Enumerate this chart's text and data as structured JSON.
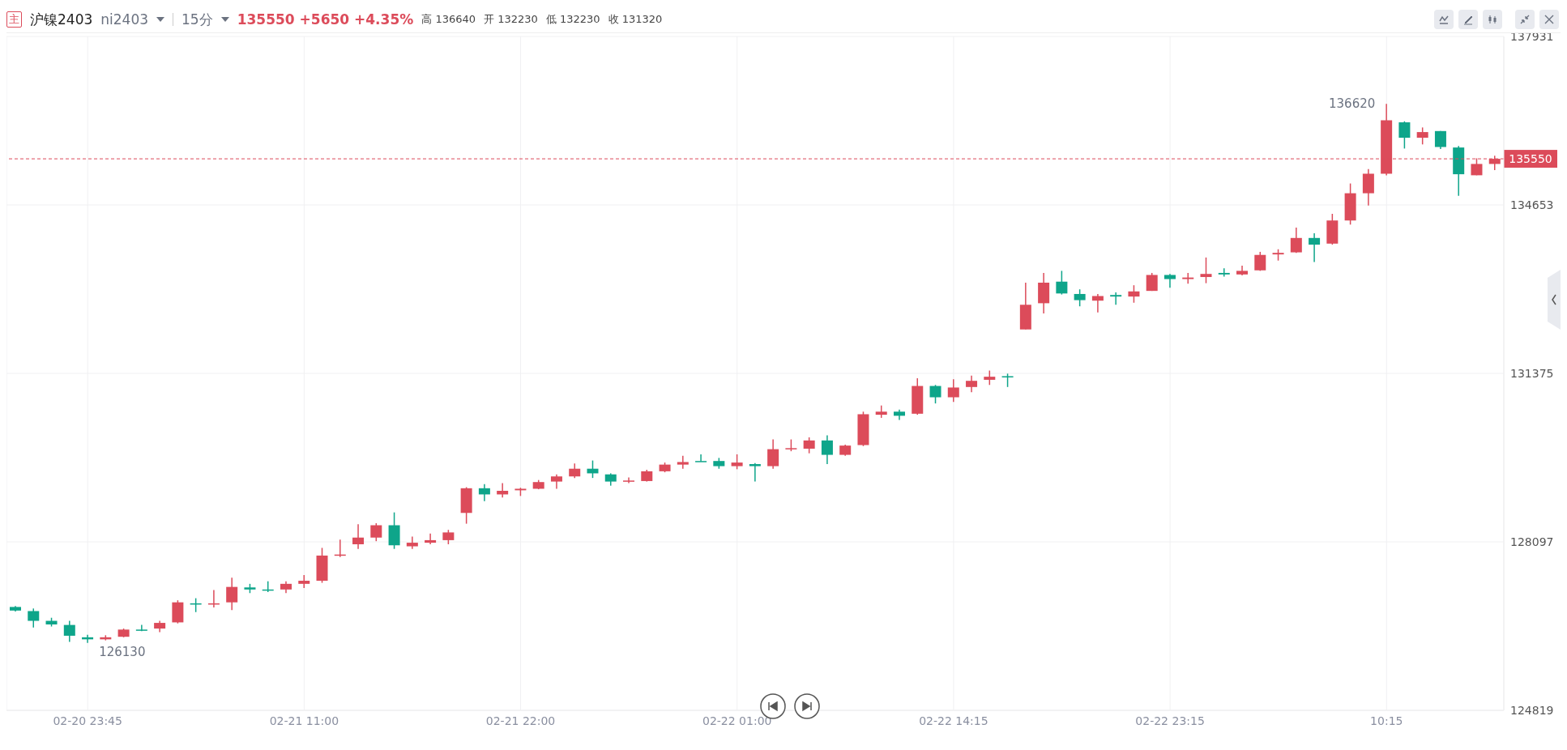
{
  "chart_data": {
    "type": "candlestick",
    "title": "沪镍2403",
    "subtitle": "ni2403",
    "annotations": [
      "主",
      "15分",
      "135550 +5650 +4.35%",
      "高 136640",
      "开 132230",
      "低 132230",
      "收 131320",
      "136620",
      "126130"
    ],
    "categories": [
      null,
      null,
      null,
      null,
      "02-20 23:45",
      null,
      null,
      null,
      null,
      null,
      null,
      null,
      null,
      null,
      null,
      null,
      "02-21 11:00",
      null,
      null,
      null,
      null,
      null,
      null,
      null,
      null,
      null,
      null,
      null,
      "02-21 22:00",
      null,
      null,
      null,
      null,
      null,
      null,
      null,
      null,
      null,
      null,
      null,
      "02-22 01:00",
      null,
      null,
      null,
      null,
      null,
      null,
      null,
      null,
      null,
      null,
      null,
      "02-22 14:15",
      null,
      null,
      null,
      null,
      null,
      null,
      null,
      null,
      null,
      null,
      null,
      "02-22 23:15",
      null,
      null,
      null,
      null,
      null,
      null,
      null,
      null,
      null,
      null,
      null,
      "10:15",
      null,
      null,
      null,
      null,
      null,
      null
    ],
    "ohlc": [
      [
        126830,
        126850,
        126740,
        126760
      ],
      [
        126750,
        126800,
        126430,
        126560
      ],
      [
        126560,
        126620,
        126450,
        126490
      ],
      [
        126480,
        126560,
        126150,
        126270
      ],
      [
        126240,
        126290,
        126130,
        126200
      ],
      [
        126200,
        126280,
        126180,
        126240
      ],
      [
        126250,
        126410,
        126240,
        126390
      ],
      [
        126390,
        126480,
        126360,
        126380
      ],
      [
        126410,
        126560,
        126340,
        126520
      ],
      [
        126530,
        126960,
        126510,
        126920
      ],
      [
        126900,
        127000,
        126730,
        126890
      ],
      [
        126890,
        127160,
        126820,
        126900
      ],
      [
        126920,
        127400,
        126770,
        127220
      ],
      [
        127210,
        127280,
        127100,
        127170
      ],
      [
        127170,
        127330,
        127120,
        127150
      ],
      [
        127170,
        127330,
        127100,
        127280
      ],
      [
        127280,
        127450,
        127200,
        127340
      ],
      [
        127340,
        127980,
        127300,
        127830
      ],
      [
        127830,
        128140,
        127800,
        127850
      ],
      [
        128050,
        128440,
        127960,
        128180
      ],
      [
        128180,
        128460,
        128110,
        128420
      ],
      [
        128420,
        128670,
        127960,
        128030
      ],
      [
        128010,
        128200,
        127960,
        128080
      ],
      [
        128080,
        128260,
        128050,
        128130
      ],
      [
        128130,
        128330,
        128050,
        128280
      ],
      [
        128660,
        129160,
        128450,
        129140
      ],
      [
        129140,
        129220,
        128890,
        129020
      ],
      [
        129020,
        129240,
        128960,
        129090
      ],
      [
        129100,
        129150,
        128990,
        129130
      ],
      [
        129130,
        129300,
        129120,
        129260
      ],
      [
        129270,
        129410,
        129130,
        129370
      ],
      [
        129370,
        129620,
        129340,
        129520
      ],
      [
        129520,
        129680,
        129340,
        129430
      ],
      [
        129410,
        129430,
        129190,
        129270
      ],
      [
        129270,
        129350,
        129240,
        129290
      ],
      [
        129280,
        129500,
        129270,
        129470
      ],
      [
        129470,
        129640,
        129450,
        129600
      ],
      [
        129600,
        129770,
        129520,
        129650
      ],
      [
        129670,
        129800,
        129660,
        129660
      ],
      [
        129670,
        129730,
        129520,
        129570
      ],
      [
        129570,
        129800,
        129510,
        129640
      ],
      [
        129610,
        129630,
        129270,
        129570
      ],
      [
        129570,
        130090,
        129520,
        129900
      ],
      [
        129910,
        130090,
        129860,
        129920
      ],
      [
        129910,
        130130,
        129820,
        130070
      ],
      [
        130070,
        130170,
        129610,
        129790
      ],
      [
        129790,
        129990,
        129770,
        129970
      ],
      [
        129980,
        130630,
        129960,
        130580
      ],
      [
        130570,
        130750,
        130510,
        130630
      ],
      [
        130630,
        130670,
        130470,
        130550
      ],
      [
        130590,
        131280,
        130570,
        131130
      ],
      [
        131130,
        131150,
        130790,
        130910
      ],
      [
        130910,
        131260,
        130820,
        131100
      ],
      [
        131110,
        131330,
        131010,
        131230
      ],
      [
        131250,
        131430,
        131150,
        131310
      ],
      [
        131320,
        131370,
        131110,
        131300
      ],
      [
        132230,
        133140,
        132230,
        132710
      ],
      [
        132740,
        133330,
        132540,
        133140
      ],
      [
        133160,
        133370,
        132910,
        132930
      ],
      [
        132920,
        133010,
        132680,
        132800
      ],
      [
        132790,
        132920,
        132560,
        132880
      ],
      [
        132900,
        132950,
        132710,
        132870
      ],
      [
        132870,
        133090,
        132750,
        132970
      ],
      [
        132980,
        133330,
        132980,
        133290
      ],
      [
        133290,
        133310,
        133040,
        133210
      ],
      [
        133210,
        133330,
        133120,
        133240
      ],
      [
        133250,
        133630,
        133130,
        133310
      ],
      [
        133330,
        133420,
        133260,
        133300
      ],
      [
        133300,
        133470,
        133280,
        133370
      ],
      [
        133380,
        133740,
        133370,
        133680
      ],
      [
        133690,
        133790,
        133570,
        133720
      ],
      [
        133730,
        134210,
        133720,
        134010
      ],
      [
        134010,
        134100,
        133540,
        133880
      ],
      [
        133900,
        134480,
        133880,
        134350
      ],
      [
        134350,
        135070,
        134270,
        134880
      ],
      [
        134880,
        135350,
        134640,
        135260
      ],
      [
        135260,
        136620,
        135230,
        136300
      ],
      [
        136260,
        136280,
        135750,
        135960
      ],
      [
        135960,
        136160,
        135830,
        136070
      ],
      [
        136090,
        136090,
        135740,
        135780
      ],
      [
        135770,
        135800,
        134830,
        135250
      ],
      [
        135230,
        135560,
        135230,
        135450
      ],
      [
        135450,
        135610,
        135330,
        135550
      ]
    ],
    "colors": [
      "#0ea58a",
      "#0ea58a",
      "#0ea58a",
      "#0ea58a",
      "#0ea58a",
      "#dc4b5a",
      "#dc4b5a",
      "#0ea58a",
      "#dc4b5a",
      "#dc4b5a",
      "#0ea58a",
      "#dc4b5a",
      "#dc4b5a",
      "#0ea58a",
      "#0ea58a",
      "#dc4b5a",
      "#dc4b5a",
      "#dc4b5a",
      "#dc4b5a",
      "#dc4b5a",
      "#dc4b5a",
      "#0ea58a",
      "#dc4b5a",
      "#dc4b5a",
      "#dc4b5a",
      "#dc4b5a",
      "#0ea58a",
      "#dc4b5a",
      "#dc4b5a",
      "#dc4b5a",
      "#dc4b5a",
      "#dc4b5a",
      "#0ea58a",
      "#0ea58a",
      "#dc4b5a",
      "#dc4b5a",
      "#dc4b5a",
      "#dc4b5a",
      "#0ea58a",
      "#0ea58a",
      "#dc4b5a",
      "#0ea58a",
      "#dc4b5a",
      "#dc4b5a",
      "#dc4b5a",
      "#0ea58a",
      "#dc4b5a",
      "#dc4b5a",
      "#dc4b5a",
      "#0ea58a",
      "#dc4b5a",
      "#0ea58a",
      "#dc4b5a",
      "#dc4b5a",
      "#dc4b5a",
      "#0ea58a",
      "#dc4b5a",
      "#dc4b5a",
      "#0ea58a",
      "#0ea58a",
      "#dc4b5a",
      "#0ea58a",
      "#dc4b5a",
      "#dc4b5a",
      "#0ea58a",
      "#dc4b5a",
      "#dc4b5a",
      "#0ea58a",
      "#dc4b5a",
      "#dc4b5a",
      "#dc4b5a",
      "#dc4b5a",
      "#0ea58a",
      "#dc4b5a",
      "#dc4b5a",
      "#dc4b5a",
      "#dc4b5a",
      "#0ea58a",
      "#dc4b5a",
      "#0ea58a",
      "#0ea58a",
      "#dc4b5a",
      "#dc4b5a"
    ],
    "ylim": [
      124819,
      137931
    ],
    "yticks": [
      124819,
      128097,
      131375,
      134653,
      137931
    ],
    "ref_lines": [
      {
        "axis": "y",
        "value": 135550,
        "label": "135550",
        "color": "#dc4b5a",
        "line_style": "dashed"
      }
    ],
    "grid": true
  }
}
